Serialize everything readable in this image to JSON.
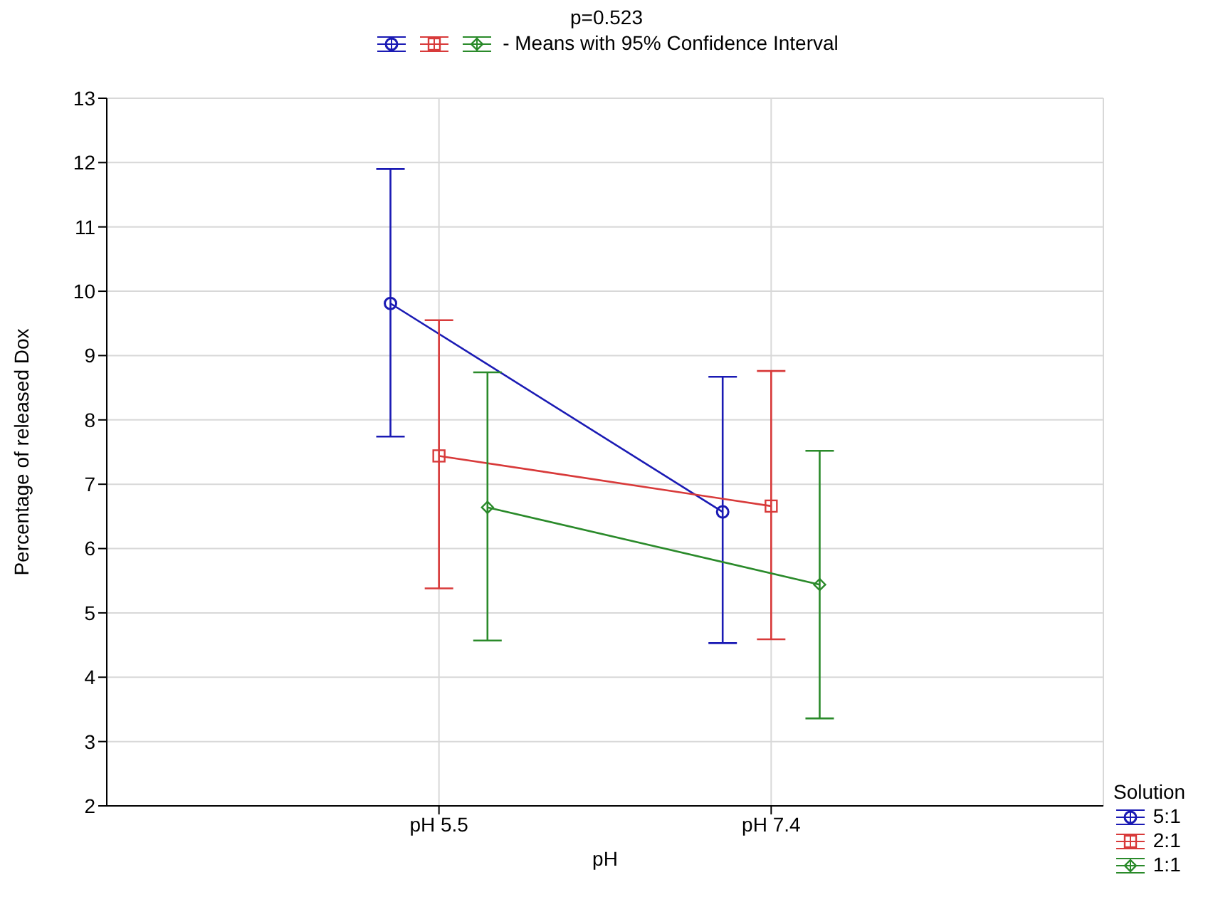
{
  "chart_data": {
    "type": "line",
    "title": "p=0.523",
    "annotations": [
      "- Means with 95% Confidence Interval"
    ],
    "xlabel": "pH",
    "ylabel": "Percentage of released Dox",
    "legend_title": "Solution",
    "legend": "bottom right",
    "grid": true,
    "categories": [
      "pH 5.5",
      "pH 7.4"
    ],
    "ylim": [
      2,
      13
    ],
    "yticks": [
      2,
      3,
      4,
      5,
      6,
      7,
      8,
      9,
      10,
      11,
      12,
      13
    ],
    "series": [
      {
        "name": "5:1",
        "color": "#1a1ab4",
        "marker": "circle",
        "values": [
          9.81,
          6.57
        ],
        "errors": [
          [
            7.74,
            11.9
          ],
          [
            4.53,
            8.67
          ]
        ]
      },
      {
        "name": "2:1",
        "color": "#d83a3a",
        "marker": "square",
        "values": [
          7.44,
          6.66
        ],
        "errors": [
          [
            5.38,
            9.55
          ],
          [
            4.59,
            8.76
          ]
        ]
      },
      {
        "name": "1:1",
        "color": "#2a8a2a",
        "marker": "diamond",
        "values": [
          6.64,
          5.44
        ],
        "errors": [
          [
            4.57,
            8.74
          ],
          [
            3.36,
            7.52
          ]
        ]
      }
    ]
  }
}
